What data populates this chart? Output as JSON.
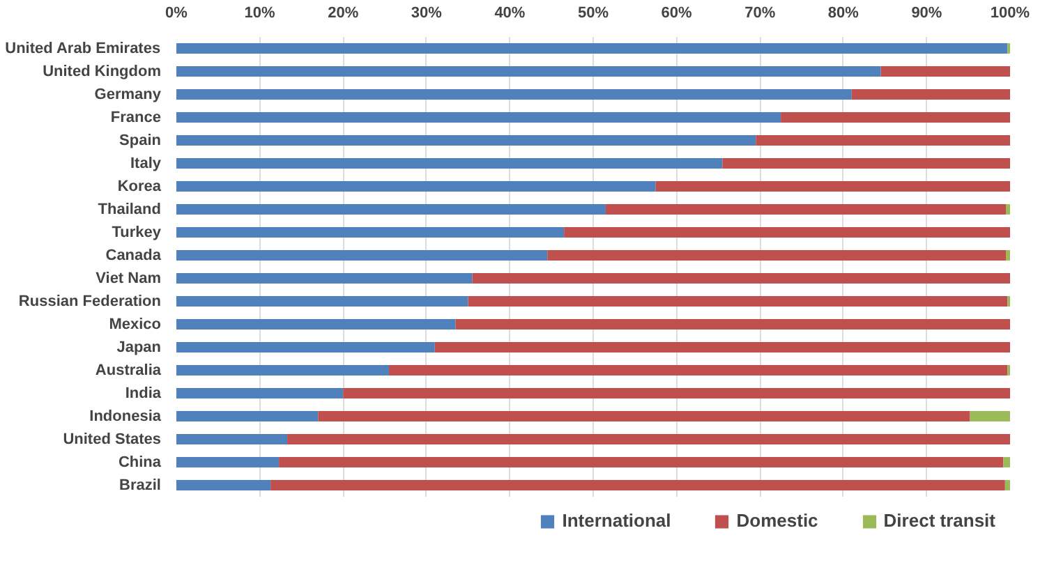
{
  "chart_data": {
    "type": "bar",
    "orientation": "horizontal",
    "stacked": true,
    "categories": [
      "United Arab Emirates",
      "United Kingdom",
      "Germany",
      "France",
      "Spain",
      "Italy",
      "Korea",
      "Thailand",
      "Turkey",
      "Canada",
      "Viet Nam",
      "Russian Federation",
      "Mexico",
      "Japan",
      "Australia",
      "India",
      "Indonesia",
      "United States",
      "China",
      "Brazil"
    ],
    "series": [
      {
        "name": "International",
        "color": "#4f81bd",
        "values": [
          99.7,
          84.5,
          81,
          72.5,
          69.5,
          65.5,
          57.5,
          51.5,
          46.5,
          44.5,
          35.5,
          35,
          33.5,
          31,
          25.5,
          20,
          17,
          13.3,
          12.3,
          11.3
        ]
      },
      {
        "name": "Domestic",
        "color": "#c0504d",
        "values": [
          0,
          15.5,
          19,
          27.5,
          30.5,
          34.5,
          42.5,
          48,
          53.5,
          55,
          64.5,
          64.7,
          66.5,
          69,
          74.2,
          80,
          78.2,
          86.7,
          86.9,
          88.1
        ]
      },
      {
        "name": "Direct transit",
        "color": "#9bbb59",
        "values": [
          0.3,
          0,
          0,
          0,
          0,
          0,
          0,
          0.5,
          0,
          0.5,
          0,
          0.3,
          0,
          0,
          0.3,
          0,
          4.8,
          0,
          0.8,
          0.6
        ]
      }
    ],
    "xlim": [
      0,
      100
    ],
    "xticks": [
      {
        "value": 0,
        "label": "0%"
      },
      {
        "value": 10,
        "label": "10%"
      },
      {
        "value": 20,
        "label": "20%"
      },
      {
        "value": 30,
        "label": "30%"
      },
      {
        "value": 40,
        "label": "40%"
      },
      {
        "value": 50,
        "label": "50%"
      },
      {
        "value": 60,
        "label": "60%"
      },
      {
        "value": 70,
        "label": "70%"
      },
      {
        "value": 80,
        "label": "80%"
      },
      {
        "value": 90,
        "label": "90%"
      },
      {
        "value": 100,
        "label": "100%"
      }
    ],
    "grid": "x",
    "legend": "bottom"
  }
}
